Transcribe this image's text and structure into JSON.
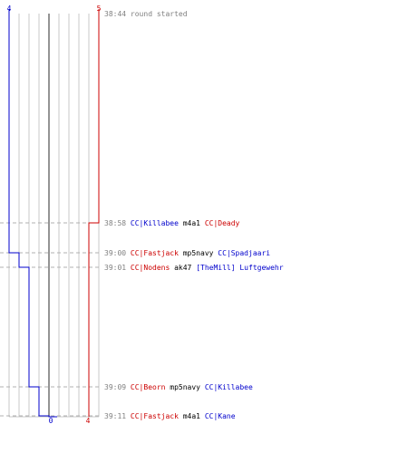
{
  "chart_data": {
    "type": "line",
    "title": "",
    "xlabel": "",
    "ylabel": "",
    "grid": true,
    "x_tick_labels": [
      "4",
      "0",
      "4",
      "5"
    ],
    "series": [],
    "events": [
      {
        "time": "38:44",
        "parts": [
          {
            "text": "round started",
            "color": "gray"
          }
        ]
      },
      {
        "time": "38:58",
        "parts": [
          {
            "text": "CC|Killabee",
            "color": "blue"
          },
          {
            "text": "m4a1",
            "color": "black"
          },
          {
            "text": "CC|Deady",
            "color": "red"
          }
        ]
      },
      {
        "time": "39:00",
        "parts": [
          {
            "text": "CC|Fastjack",
            "color": "red"
          },
          {
            "text": "mp5navy",
            "color": "black"
          },
          {
            "text": "CC|Spadjaari",
            "color": "blue"
          }
        ]
      },
      {
        "time": "39:01",
        "parts": [
          {
            "text": "CC|Nodens",
            "color": "red"
          },
          {
            "text": "ak47",
            "color": "black"
          },
          {
            "text": "[TheMill] Luftgewehr",
            "color": "blue"
          }
        ]
      },
      {
        "time": "39:09",
        "parts": [
          {
            "text": "CC|Beorn",
            "color": "red"
          },
          {
            "text": "mp5navy",
            "color": "black"
          },
          {
            "text": "CC|Killabee",
            "color": "blue"
          }
        ]
      },
      {
        "time": "39:11",
        "parts": [
          {
            "text": "CC|Fastjack",
            "color": "red"
          },
          {
            "text": "m4a1",
            "color": "black"
          },
          {
            "text": "CC|Kane",
            "color": "blue"
          }
        ]
      }
    ],
    "blue_team": {
      "start": 4,
      "end": 0,
      "color": "#0000cc",
      "alive_after_event": [
        4,
        4,
        3,
        2,
        1,
        0
      ]
    },
    "red_team": {
      "start": 5,
      "end": 4,
      "color": "#cc0000",
      "alive_after_event": [
        5,
        4,
        4,
        4,
        4,
        4
      ]
    }
  }
}
